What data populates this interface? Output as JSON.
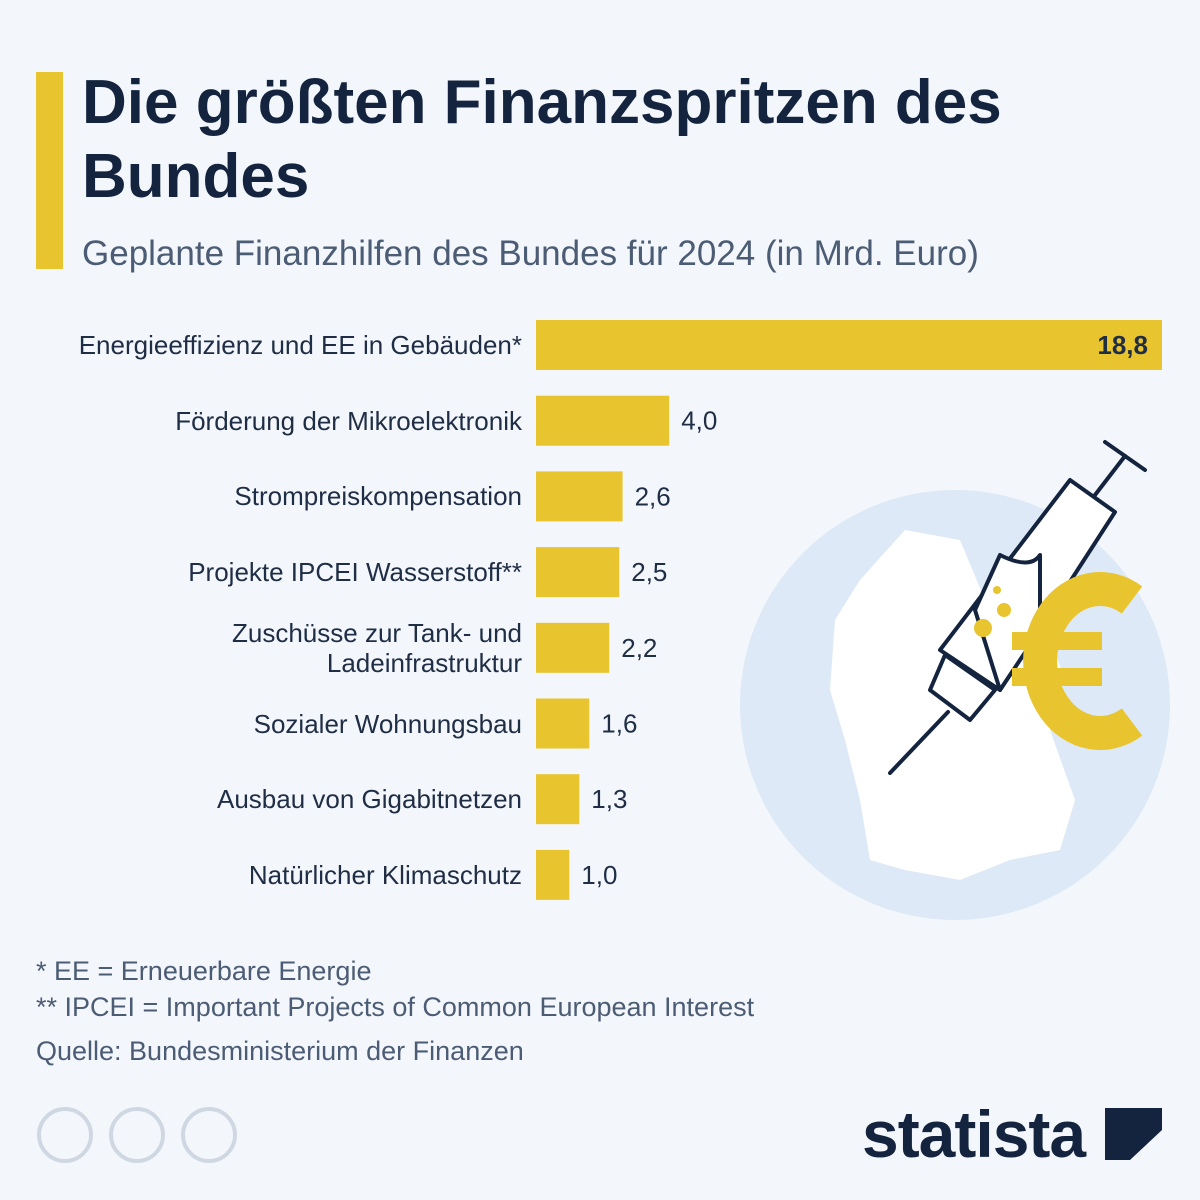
{
  "chart_data": {
    "type": "bar",
    "orientation": "horizontal",
    "title": "Die größten Finanzspritzen des Bundes",
    "subtitle": "Geplante Finanzhilfen des Bundes für 2024 (in Mrd. Euro)",
    "categories": [
      "Energieeffizienz und EE in Gebäuden*",
      "Förderung der Mikroelektronik",
      "Strompreiskompensation",
      "Projekte IPCEI Wasserstoff**",
      "Zuschüsse zur Tank- und Ladeinfrastruktur",
      "Sozialer Wohnungsbau",
      "Ausbau von Gigabitnetzen",
      "Natürlicher Klimaschutz"
    ],
    "values": [
      18.8,
      4.0,
      2.6,
      2.5,
      2.2,
      1.6,
      1.3,
      1.0
    ],
    "value_labels": [
      "18,8",
      "4,0",
      "2,6",
      "2,5",
      "2,2",
      "1,6",
      "1,3",
      "1,0"
    ],
    "color": "#e8c42e",
    "notes": [
      "*   EE = Erneuerbare Energie",
      "** IPCEI = Important Projects of Common European Interest"
    ],
    "source": "Quelle: Bundesministerium der Finanzen",
    "brand": "statista"
  }
}
